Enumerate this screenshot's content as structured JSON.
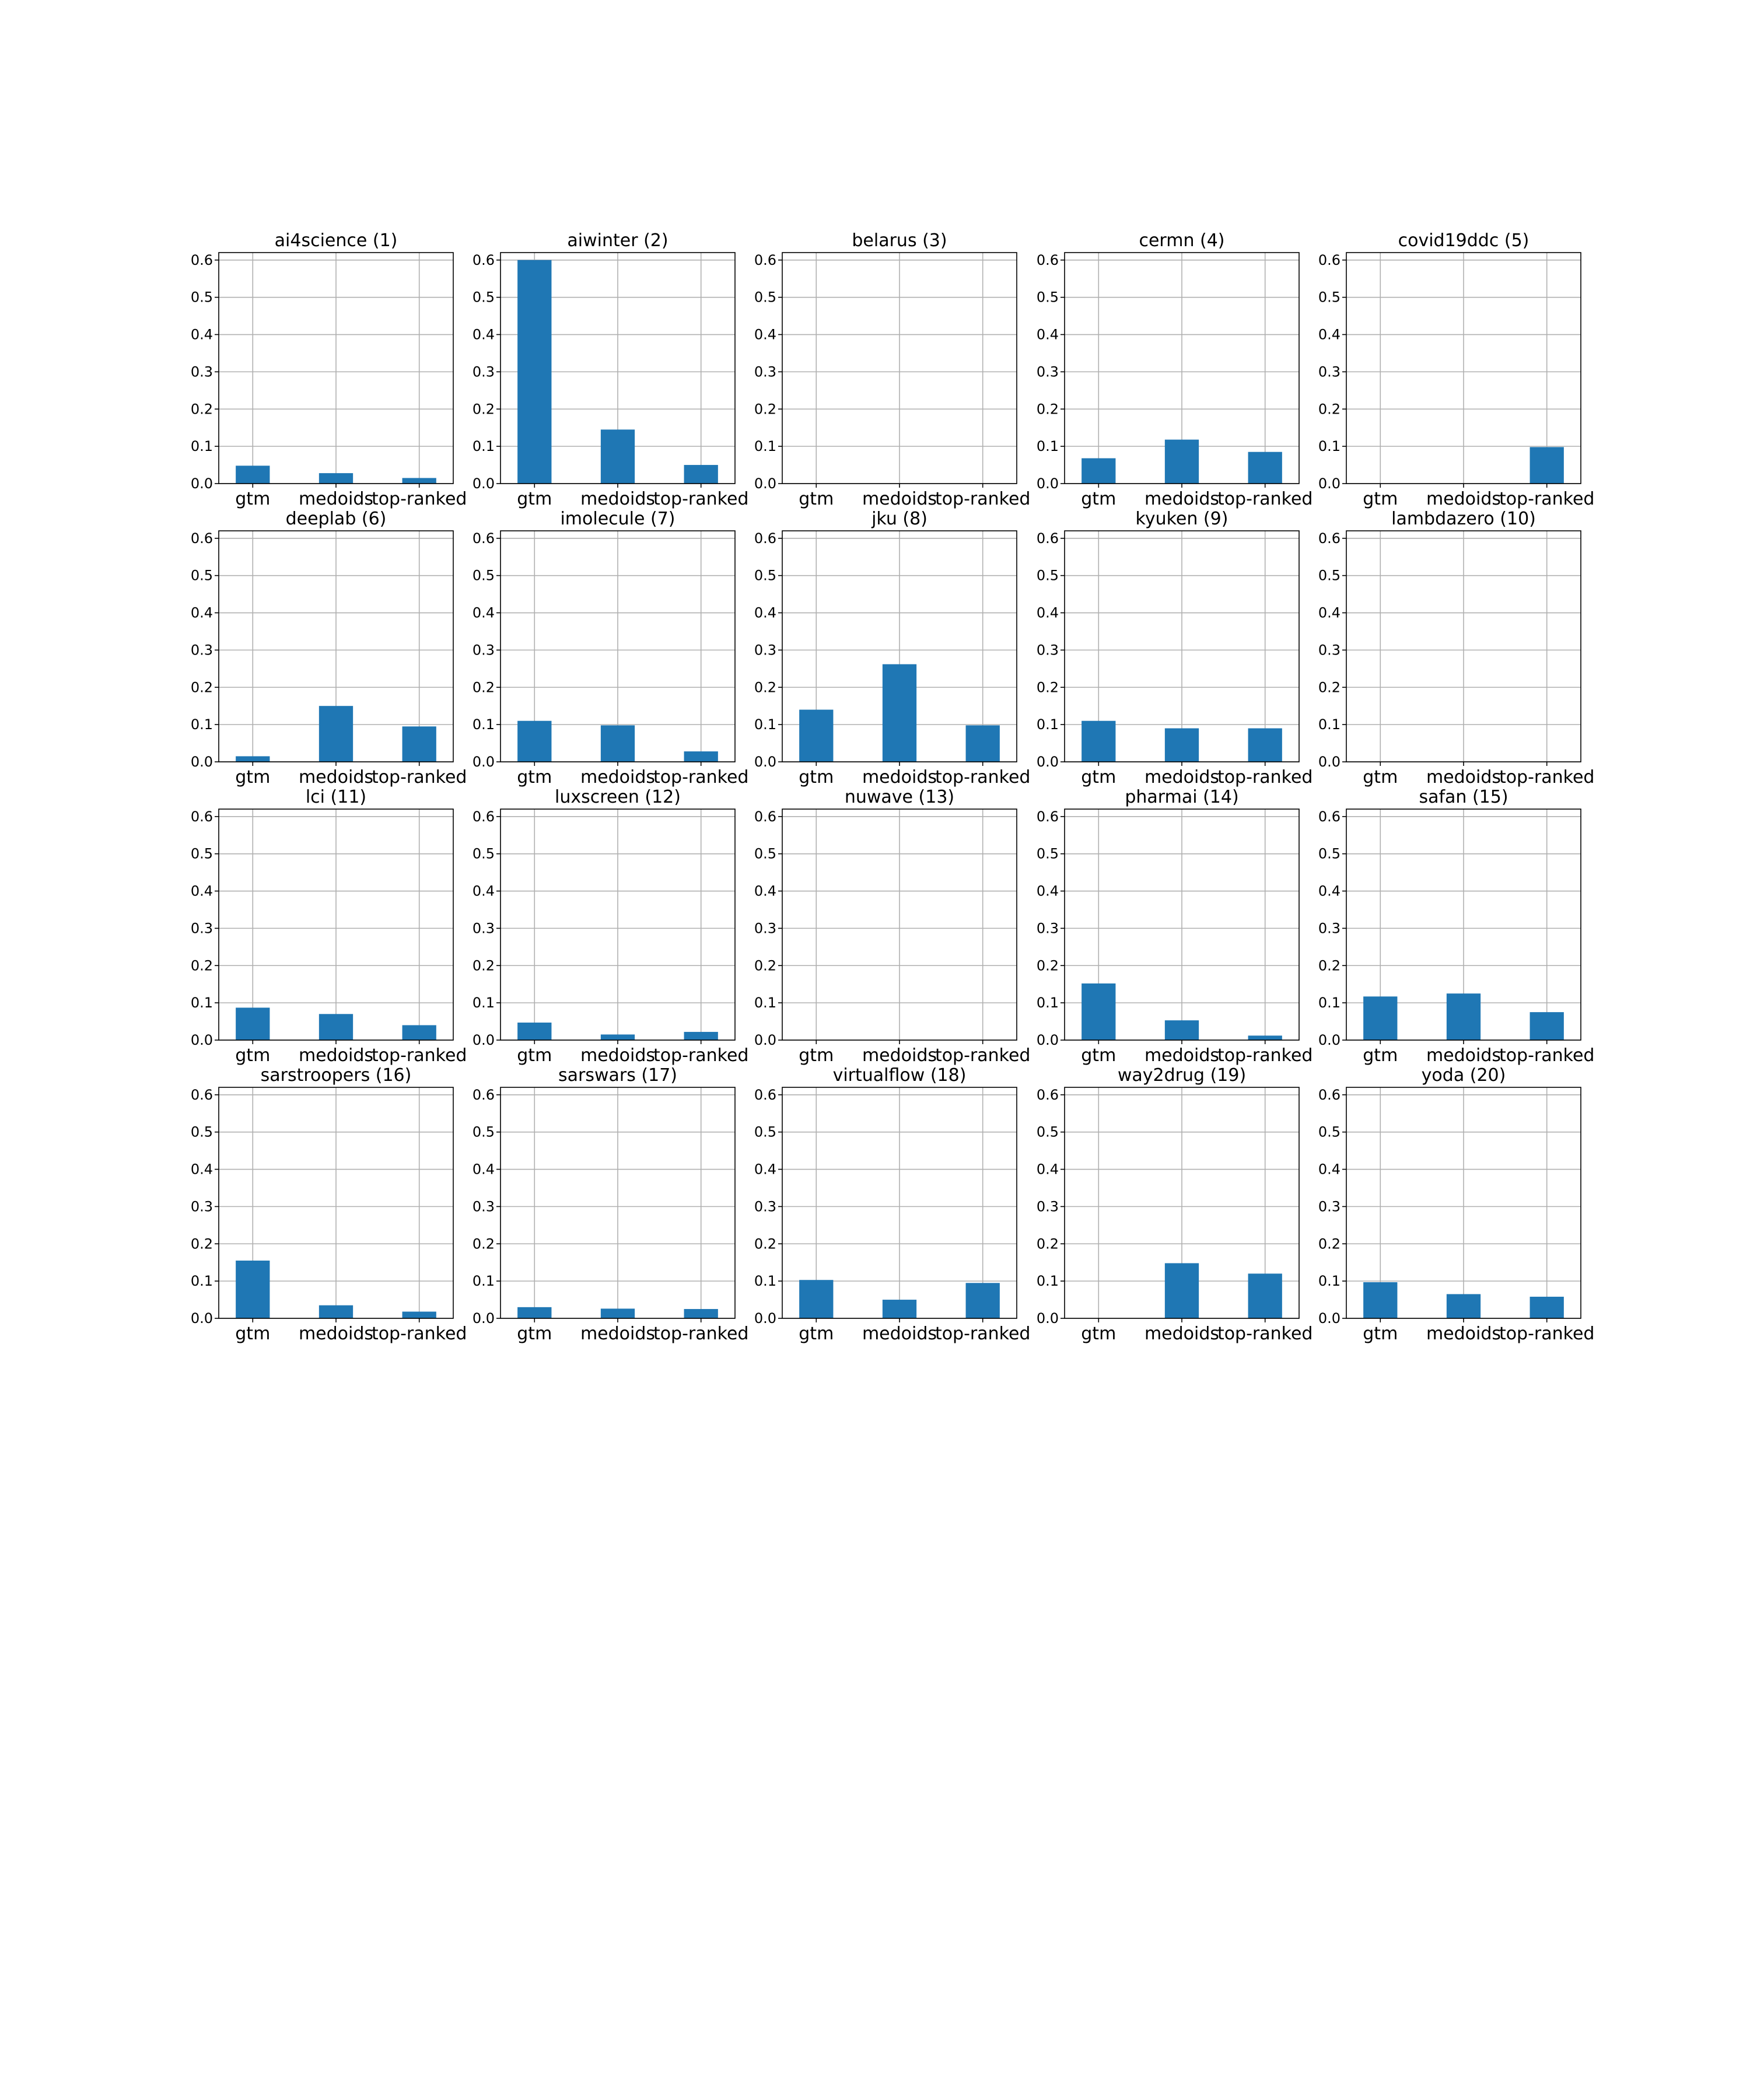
{
  "chart_data": {
    "type": "bar",
    "layout": {
      "rows": 4,
      "cols": 5
    },
    "categories": [
      "gtm",
      "medoids",
      "top-ranked"
    ],
    "ylim": [
      0,
      0.62
    ],
    "yticks": [
      0.0,
      0.1,
      0.2,
      0.3,
      0.4,
      0.5,
      0.6
    ],
    "ytick_labels": [
      "0.0",
      "0.1",
      "0.2",
      "0.3",
      "0.4",
      "0.5",
      "0.6"
    ],
    "grid": true,
    "bar_color": "#1f77b4",
    "panels": [
      {
        "title": "ai4science (1)",
        "values": [
          0.048,
          0.028,
          0.015
        ]
      },
      {
        "title": "aiwinter (2)",
        "values": [
          0.6,
          0.145,
          0.05
        ]
      },
      {
        "title": "belarus (3)",
        "values": [
          0,
          0,
          0
        ]
      },
      {
        "title": "cermn (4)",
        "values": [
          0.068,
          0.118,
          0.085
        ]
      },
      {
        "title": "covid19ddc (5)",
        "values": [
          0,
          0,
          0.098
        ]
      },
      {
        "title": "deeplab (6)",
        "values": [
          0.015,
          0.15,
          0.095
        ]
      },
      {
        "title": "imolecule (7)",
        "values": [
          0.11,
          0.098,
          0.028
        ]
      },
      {
        "title": "jku (8)",
        "values": [
          0.14,
          0.262,
          0.098
        ]
      },
      {
        "title": "kyuken (9)",
        "values": [
          0.11,
          0.09,
          0.09
        ]
      },
      {
        "title": "lambdazero (10)",
        "values": [
          0,
          0,
          0
        ]
      },
      {
        "title": "lci (11)",
        "values": [
          0.087,
          0.07,
          0.04
        ]
      },
      {
        "title": "luxscreen (12)",
        "values": [
          0.047,
          0.015,
          0.022
        ]
      },
      {
        "title": "nuwave (13)",
        "values": [
          0,
          0,
          0
        ]
      },
      {
        "title": "pharmai (14)",
        "values": [
          0.152,
          0.053,
          0.012
        ]
      },
      {
        "title": "safan (15)",
        "values": [
          0.117,
          0.125,
          0.075
        ]
      },
      {
        "title": "sarstroopers (16)",
        "values": [
          0.155,
          0.035,
          0.018
        ]
      },
      {
        "title": "sarswars (17)",
        "values": [
          0.03,
          0.026,
          0.025
        ]
      },
      {
        "title": "virtualflow (18)",
        "values": [
          0.103,
          0.05,
          0.095
        ]
      },
      {
        "title": "way2drug (19)",
        "values": [
          0,
          0.148,
          0.12
        ]
      },
      {
        "title": "yoda (20)",
        "values": [
          0.097,
          0.065,
          0.058
        ]
      }
    ]
  }
}
